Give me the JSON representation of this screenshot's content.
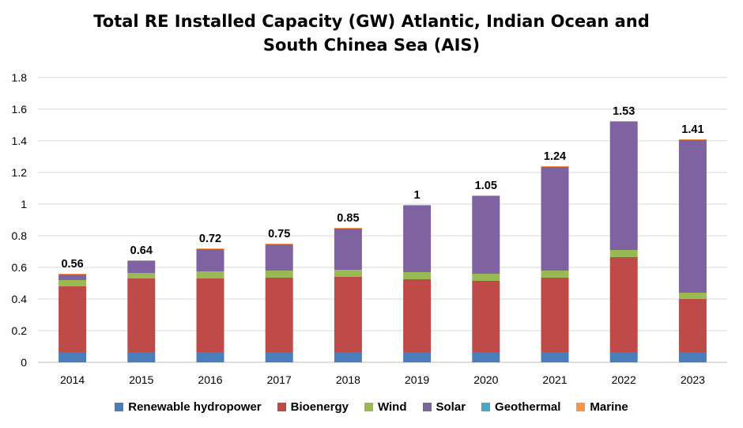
{
  "chart_data": {
    "type": "bar",
    "stacked": true,
    "title_line1": "Total RE Installed Capacity (GW) Atlantic, Indian Ocean and",
    "title_line2": "South Chinea Sea (AIS)",
    "xlabel": "",
    "ylabel": "",
    "ylim": [
      0,
      1.8
    ],
    "ytick_step": 0.2,
    "yticks": [
      "0",
      "0.2",
      "0.4",
      "0.6",
      "0.8",
      "1",
      "1.2",
      "1.4",
      "1.6",
      "1.8"
    ],
    "grid": true,
    "legend_position": "bottom",
    "categories": [
      "2014",
      "2015",
      "2016",
      "2017",
      "2018",
      "2019",
      "2020",
      "2021",
      "2022",
      "2023"
    ],
    "series": [
      {
        "name": "Renewable hydropower",
        "color": "#4a7ebb",
        "values": [
          0.065,
          0.065,
          0.065,
          0.065,
          0.065,
          0.065,
          0.065,
          0.065,
          0.065,
          0.065
        ]
      },
      {
        "name": "Bioenergy",
        "color": "#be4b48",
        "values": [
          0.415,
          0.465,
          0.465,
          0.47,
          0.475,
          0.46,
          0.45,
          0.47,
          0.6,
          0.335
        ]
      },
      {
        "name": "Wind",
        "color": "#98b954",
        "values": [
          0.04,
          0.035,
          0.045,
          0.045,
          0.045,
          0.045,
          0.045,
          0.045,
          0.045,
          0.04
        ]
      },
      {
        "name": "Solar",
        "color": "#7e63a0",
        "values": [
          0.035,
          0.075,
          0.14,
          0.165,
          0.26,
          0.42,
          0.49,
          0.655,
          0.81,
          0.965
        ]
      },
      {
        "name": "Geothermal",
        "color": "#46aac5",
        "values": [
          0,
          0,
          0,
          0,
          0,
          0,
          0,
          0,
          0,
          0
        ]
      },
      {
        "name": "Marine",
        "color": "#f79646",
        "values": [
          0.005,
          0.005,
          0.005,
          0.005,
          0.005,
          0.005,
          0.005,
          0.005,
          0.005,
          0.005
        ]
      }
    ],
    "totals": [
      "0.56",
      "0.64",
      "0.72",
      "0.75",
      "0.85",
      "1",
      "1.05",
      "1.24",
      "1.53",
      "1.41"
    ]
  }
}
